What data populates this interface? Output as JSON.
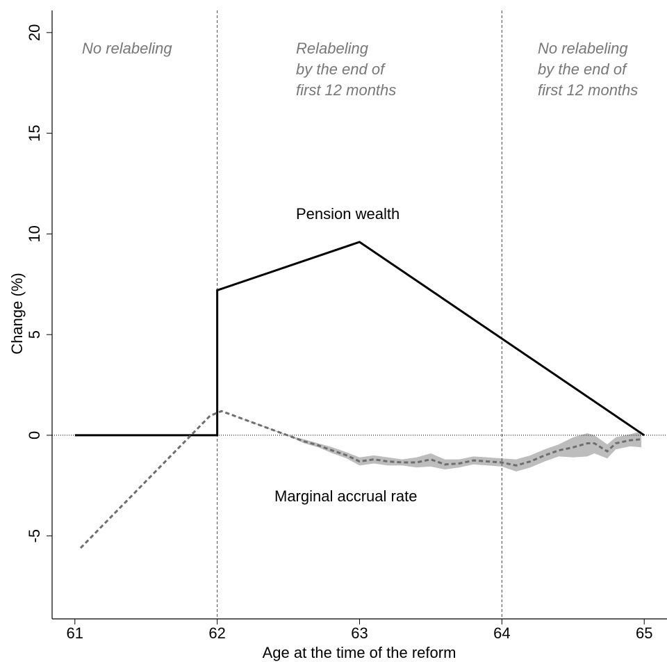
{
  "chart_data": {
    "type": "line",
    "x_label": "Age at the time of the reform",
    "y_label": "Change (%)",
    "xlim": [
      60.84,
      65.16
    ],
    "ylim": [
      -9.12,
      21.1
    ],
    "xticks": [
      61,
      62,
      63,
      64,
      65
    ],
    "yticks": [
      20,
      15,
      10,
      5,
      0,
      -5
    ],
    "vlines": [
      62,
      64
    ],
    "hline": 0,
    "annotations": [
      [
        "No relabeling"
      ],
      [
        "Relabeling",
        "by the end of",
        "first 12 months"
      ],
      [
        "No relabeling",
        "by the end of",
        "first 12 months"
      ],
      [
        "Pension wealth"
      ],
      [
        "Marginal accrual rate"
      ]
    ],
    "series": [
      {
        "color": "#000000",
        "style": "solid",
        "x": [
          61,
          62,
          62,
          63,
          65
        ],
        "values": [
          0,
          0,
          7.2,
          9.6,
          0
        ]
      },
      {
        "color": "#6e6e6e",
        "style": "dashed",
        "band_color": "#bdbdbd",
        "x": [
          61.04,
          61.95,
          62.03,
          62.52,
          62.61,
          62.71,
          62.81,
          62.91,
          63.0,
          63.1,
          63.2,
          63.3,
          63.4,
          63.5,
          63.6,
          63.7,
          63.8,
          63.9,
          64.0,
          64.1,
          64.2,
          64.3,
          64.4,
          64.5,
          64.6,
          64.65,
          64.74,
          64.8,
          64.9,
          64.98
        ],
        "values": [
          -5.6,
          0.97,
          1.2,
          -0.07,
          -0.3,
          -0.5,
          -0.76,
          -1.0,
          -1.3,
          -1.2,
          -1.3,
          -1.35,
          -1.35,
          -1.2,
          -1.45,
          -1.4,
          -1.25,
          -1.3,
          -1.35,
          -1.5,
          -1.3,
          -1.0,
          -0.75,
          -0.6,
          -0.4,
          -0.4,
          -0.8,
          -0.4,
          -0.25,
          -0.2
        ],
        "lower": [
          -5.6,
          0.97,
          1.2,
          -0.1,
          -0.4,
          -0.6,
          -0.9,
          -1.15,
          -1.5,
          -1.4,
          -1.5,
          -1.5,
          -1.6,
          -1.55,
          -1.7,
          -1.6,
          -1.45,
          -1.5,
          -1.55,
          -1.8,
          -1.6,
          -1.3,
          -1.05,
          -1.1,
          -1.05,
          -0.9,
          -1.15,
          -0.7,
          -0.55,
          -0.6
        ],
        "upper": [
          -5.6,
          0.97,
          1.2,
          -0.04,
          -0.2,
          -0.4,
          -0.6,
          -0.85,
          -1.1,
          -1.0,
          -1.1,
          -1.2,
          -1.1,
          -0.9,
          -1.2,
          -1.2,
          -1.05,
          -1.1,
          -1.15,
          -1.2,
          -1.0,
          -0.7,
          -0.45,
          -0.1,
          0.1,
          0.0,
          -0.45,
          -0.1,
          0.05,
          0.2
        ]
      }
    ]
  }
}
